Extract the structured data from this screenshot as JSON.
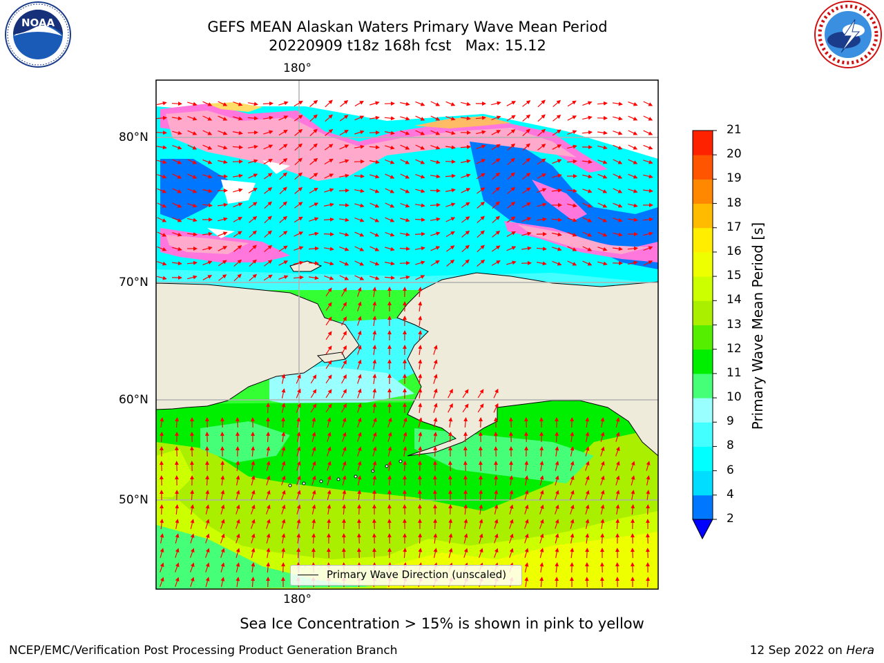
{
  "header": {
    "title_line1": "GEFS MEAN Alaskan Waters Primary Wave Mean Period",
    "title_line2": "20220909 t18z 168h fcst   Max: 15.12"
  },
  "logos": {
    "left": "noaa-logo",
    "right": "national-weather-service-logo"
  },
  "map": {
    "lon_label_top": "180°",
    "lon_label_bottom": "180°",
    "lat_labels": [
      "80°N",
      "70°N",
      "60°N",
      "50°N"
    ],
    "legend_label": "Primary Wave Direction (unscaled)",
    "land_color": "#efebdb",
    "arrow_color": "#ff0000"
  },
  "colorbar": {
    "title": "Primary Wave Mean Period [s]",
    "ticks": [
      "21",
      "20",
      "19",
      "18",
      "17",
      "16",
      "15",
      "14",
      "13",
      "12",
      "11",
      "10",
      "9",
      "8",
      "6",
      "4",
      "2"
    ],
    "colors": [
      "#0000ff",
      "#0077ff",
      "#00ddff",
      "#00ffff",
      "#44ffff",
      "#99ffff",
      "#44ff77",
      "#00ee00",
      "#55ee00",
      "#aaee00",
      "#ccff00",
      "#eeff00",
      "#ffee00",
      "#ffbb00",
      "#ff8800",
      "#ff5500",
      "#ff2200",
      "#ff0000"
    ]
  },
  "footer": {
    "note": "Sea Ice Concentration > 15% is shown in pink to yellow",
    "credit_left": "NCEP/EMC/Verification Post Processing Product Generation Branch",
    "credit_right_date": "12 Sep 2022 on ",
    "credit_right_machine": "Hera"
  }
}
